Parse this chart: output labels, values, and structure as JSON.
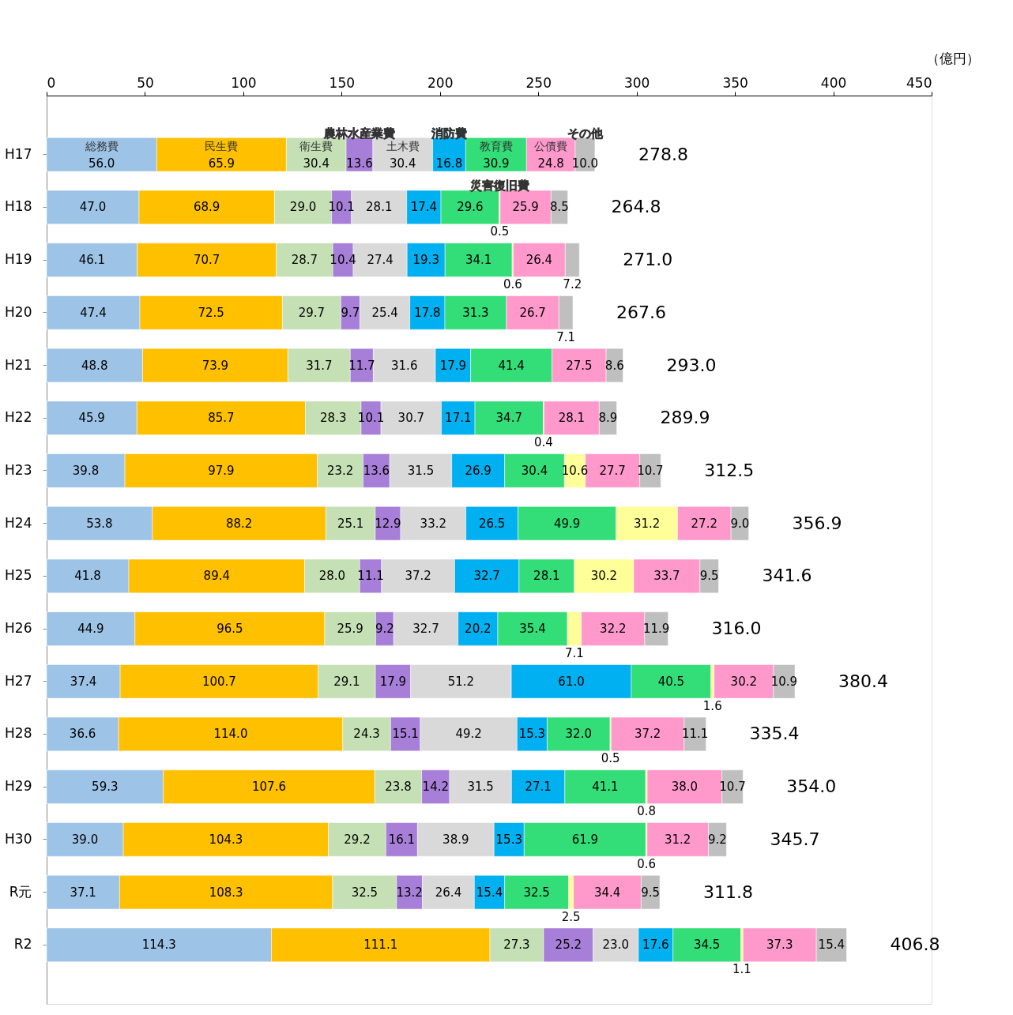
{
  "chart_data": {
    "type": "bar",
    "orientation": "horizontal",
    "stacked": true,
    "xlabel": "（億円）",
    "xlim": [
      0,
      450
    ],
    "xticks": [
      0,
      50,
      100,
      150,
      200,
      250,
      300,
      350,
      400,
      450
    ],
    "grid": false,
    "categories": [
      "H17",
      "H18",
      "H19",
      "H20",
      "H21",
      "H22",
      "H23",
      "H24",
      "H25",
      "H26",
      "H27",
      "H28",
      "H29",
      "H30",
      "R元",
      "R2"
    ],
    "series": [
      {
        "name": "総務費",
        "color": "#9dc3e6",
        "values": [
          56.0,
          47.0,
          46.1,
          47.4,
          48.8,
          45.9,
          39.8,
          53.8,
          41.8,
          44.9,
          37.4,
          36.6,
          59.3,
          39.0,
          37.1,
          114.3
        ],
        "value_labels": [
          "56.0",
          "47.0",
          "46.1",
          "47.4",
          "48.8",
          "45.9",
          "39.8",
          "53.8",
          "41.8",
          "44.9",
          "37.4",
          "36.6",
          "59.3",
          "39.0",
          "37.1",
          "114.3"
        ]
      },
      {
        "name": "民生費",
        "color": "#ffc000",
        "values": [
          65.9,
          68.9,
          70.7,
          72.5,
          73.9,
          85.7,
          97.9,
          88.2,
          89.4,
          96.5,
          100.7,
          114.0,
          107.6,
          104.3,
          108.3,
          111.1
        ],
        "value_labels": [
          "65.9",
          "68.9",
          "70.7",
          "72.5",
          "73.9",
          "85.7",
          "97.9",
          "88.2",
          "89.4",
          "96.5",
          "100.7",
          "114.0",
          "107.6",
          "104.3",
          "108.3",
          "111.1"
        ]
      },
      {
        "name": "衛生費",
        "color": "#c5e0b4",
        "values": [
          30.4,
          29.0,
          28.7,
          29.7,
          31.7,
          28.3,
          23.2,
          25.1,
          28.0,
          25.9,
          29.1,
          24.3,
          23.8,
          29.2,
          32.5,
          27.3
        ],
        "value_labels": [
          "30.4",
          "29.0",
          "28.7",
          "29.7",
          "31.7",
          "28.3",
          "23.2",
          "25.1",
          "28.0",
          "25.9",
          "29.1",
          "24.3",
          "23.8",
          "29.2",
          "32.5",
          "27.3"
        ]
      },
      {
        "name": "農林水産業費",
        "color": "#a77fd8",
        "values": [
          13.6,
          10.1,
          10.4,
          9.7,
          11.7,
          10.1,
          13.6,
          12.9,
          11.1,
          9.2,
          17.9,
          15.1,
          14.2,
          16.1,
          13.2,
          25.2
        ],
        "value_labels": [
          "13.6",
          "10.1",
          "10.4",
          "9.7",
          "11.7",
          "10.1",
          "13.6",
          "12.9",
          "11.1",
          "9.2",
          "17.9",
          "15.1",
          "14.2",
          "16.1",
          "13.2",
          "25.2"
        ]
      },
      {
        "name": "土木費",
        "color": "#d9d9d9",
        "values": [
          30.4,
          28.1,
          27.4,
          25.4,
          31.6,
          30.7,
          31.5,
          33.2,
          37.2,
          32.7,
          51.2,
          49.2,
          31.5,
          38.9,
          26.4,
          23.0
        ],
        "value_labels": [
          "30.4",
          "28.1",
          "27.4",
          "25.4",
          "31.6",
          "30.7",
          "31.5",
          "33.2",
          "37.2",
          "32.7",
          "51.2",
          "49.2",
          "31.5",
          "38.9",
          "26.4",
          "23.0"
        ]
      },
      {
        "name": "消防費",
        "color": "#00b0f0",
        "values": [
          16.8,
          17.4,
          19.3,
          17.8,
          17.9,
          17.1,
          26.9,
          26.5,
          32.7,
          20.2,
          61.0,
          15.3,
          27.1,
          15.3,
          15.4,
          17.6
        ],
        "value_labels": [
          "16.8",
          "17.4",
          "19.3",
          "17.8",
          "17.9",
          "17.1",
          "26.9",
          "26.5",
          "32.7",
          "20.2",
          "61.0",
          "15.3",
          "27.1",
          "15.3",
          "15.4",
          "17.6"
        ]
      },
      {
        "name": "教育費",
        "color": "#33dd77",
        "values": [
          30.9,
          29.6,
          34.1,
          31.3,
          41.4,
          34.7,
          30.4,
          49.9,
          28.1,
          35.4,
          40.5,
          32.0,
          41.1,
          61.9,
          32.5,
          34.5
        ],
        "value_labels": [
          "30.9",
          "29.6",
          "34.1",
          "31.3",
          "41.4",
          "34.7",
          "30.4",
          "49.9",
          "28.1",
          "35.4",
          "40.5",
          "32.0",
          "41.1",
          "61.9",
          "32.5",
          "34.5"
        ]
      },
      {
        "name": "災害復旧費",
        "color": "#ffff99",
        "values": [
          null,
          0.5,
          0.6,
          null,
          null,
          0.4,
          10.6,
          31.2,
          30.2,
          7.1,
          1.6,
          0.5,
          0.8,
          0.6,
          2.5,
          1.1
        ],
        "value_labels": [
          null,
          "0.5",
          "0.6",
          null,
          null,
          "0.4",
          "10.6",
          "31.2",
          "30.2",
          "7.1",
          "1.6",
          "0.5",
          "0.8",
          "0.6",
          "2.5",
          "1.1"
        ]
      },
      {
        "name": "公債費",
        "color": "#ff99cc",
        "values": [
          24.8,
          25.9,
          26.4,
          26.7,
          27.5,
          28.1,
          27.7,
          27.2,
          33.7,
          32.2,
          30.2,
          37.2,
          38.0,
          31.2,
          34.4,
          37.3
        ],
        "value_labels": [
          "24.8",
          "25.9",
          "26.4",
          "26.7",
          "27.5",
          "28.1",
          "27.7",
          "27.2",
          "33.7",
          "32.2",
          "30.2",
          "37.2",
          "38.0",
          "31.2",
          "34.4",
          "37.3"
        ]
      },
      {
        "name": "その他",
        "color": "#bfbfbf",
        "values": [
          10.0,
          8.5,
          7.2,
          7.1,
          8.6,
          8.9,
          10.7,
          9.0,
          9.5,
          11.9,
          10.9,
          11.1,
          10.7,
          9.2,
          9.5,
          15.4
        ],
        "value_labels": [
          "10.0",
          "8.5",
          "7.2",
          "7.1",
          "8.6",
          "8.9",
          "10.7",
          "9.0",
          "9.5",
          "11.9",
          "10.9",
          "11.1",
          "10.7",
          "9.2",
          "9.5",
          "15.4"
        ]
      }
    ],
    "totals": [
      "278.8",
      "264.8",
      "271.0",
      "267.6",
      "293.0",
      "289.9",
      "312.5",
      "356.9",
      "341.6",
      "316.0",
      "380.4",
      "335.4",
      "354.0",
      "345.7",
      "311.8",
      "406.8"
    ]
  }
}
